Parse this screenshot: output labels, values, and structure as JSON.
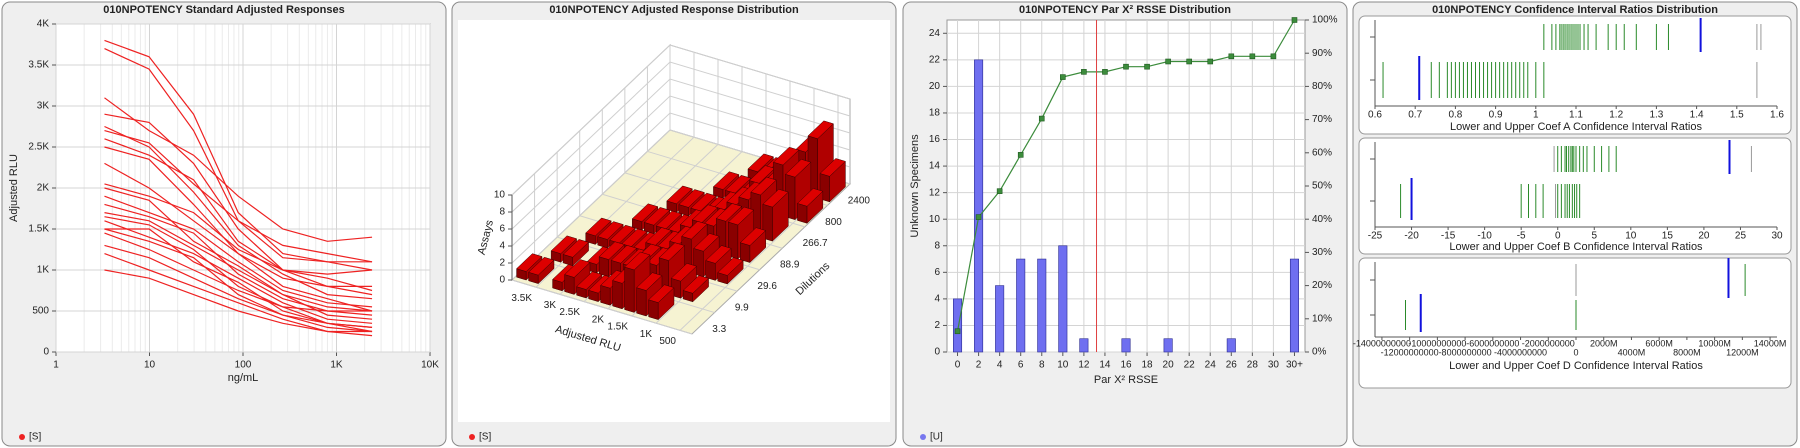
{
  "chart_data": [
    {
      "type": "line",
      "title": "010NPOTENCY Standard Adjusted Responses",
      "xlabel": "ng/mL",
      "ylabel": "Adjusted RLU",
      "x": [
        3.3,
        9.9,
        29.6,
        88.9,
        266.7,
        800,
        2400
      ],
      "log_x": true,
      "xlim": [
        1,
        10000
      ],
      "xticks": [
        1,
        10,
        100,
        {
          "value": 1000,
          "label": "1K"
        },
        {
          "value": 10000,
          "label": "10K"
        }
      ],
      "ylim": [
        0,
        4000
      ],
      "yticks": [
        0,
        500,
        {
          "value": 1000,
          "label": "1K"
        },
        {
          "value": 1500,
          "label": "1.5K"
        },
        {
          "value": 2000,
          "label": "2K"
        },
        {
          "value": 2500,
          "label": "2.5K"
        },
        {
          "value": 3000,
          "label": "3K"
        },
        {
          "value": 3500,
          "label": "3.5K"
        },
        {
          "value": 4000,
          "label": "4K"
        }
      ],
      "grid": true,
      "color": "#ee2222",
      "legend": {
        "label": "[S]",
        "color": "#ee2222"
      },
      "series": [
        {
          "values": [
            3800,
            3600,
            2900,
            1700,
            1200,
            1100,
            1000
          ]
        },
        {
          "values": [
            3700,
            3450,
            2700,
            1600,
            1150,
            1100,
            1100
          ]
        },
        {
          "values": [
            3100,
            2700,
            2400,
            1900,
            1500,
            1350,
            1400
          ]
        },
        {
          "values": [
            2900,
            2800,
            2300,
            1500,
            1000,
            800,
            800
          ]
        },
        {
          "values": [
            2750,
            2500,
            1950,
            1300,
            950,
            700,
            650
          ]
        },
        {
          "values": [
            2700,
            2550,
            2050,
            1600,
            1300,
            1200,
            1100
          ]
        },
        {
          "values": [
            2600,
            2400,
            2100,
            1350,
            1000,
            900,
            750
          ]
        },
        {
          "values": [
            2500,
            2350,
            1800,
            1200,
            800,
            650,
            500
          ]
        },
        {
          "values": [
            2300,
            2000,
            1600,
            1200,
            900,
            800,
            700
          ]
        },
        {
          "values": [
            2050,
            1900,
            1700,
            1250,
            1000,
            950,
            1000
          ]
        },
        {
          "values": [
            2000,
            1850,
            1350,
            1050,
            700,
            550,
            500
          ]
        },
        {
          "values": [
            1900,
            1700,
            1500,
            1100,
            750,
            600,
            550
          ]
        },
        {
          "values": [
            1800,
            1650,
            1450,
            950,
            650,
            500,
            450
          ]
        },
        {
          "values": [
            1700,
            1600,
            1300,
            1000,
            700,
            450,
            400
          ]
        },
        {
          "values": [
            1650,
            1550,
            1250,
            800,
            550,
            350,
            300
          ]
        },
        {
          "values": [
            1600,
            1400,
            1200,
            900,
            600,
            400,
            350
          ]
        },
        {
          "values": [
            1500,
            1500,
            1100,
            850,
            500,
            350,
            250
          ]
        },
        {
          "values": [
            1500,
            1350,
            1150,
            700,
            450,
            300,
            250
          ]
        },
        {
          "values": [
            1450,
            1250,
            1000,
            750,
            550,
            500,
            500
          ]
        },
        {
          "values": [
            1300,
            1150,
            900,
            650,
            450,
            350,
            300
          ]
        },
        {
          "values": [
            1200,
            1000,
            800,
            600,
            400,
            250,
            250
          ]
        },
        {
          "values": [
            1000,
            900,
            700,
            500,
            350,
            250,
            200
          ]
        }
      ]
    },
    {
      "type": "bar3d",
      "title": "010NPOTENCY Adjusted Response Distribution",
      "xlabel": "Adjusted RLU",
      "ylabel": "Dilutions",
      "zlabel": "Assays",
      "xbins": [
        250,
        500,
        750,
        1000,
        1250,
        1500,
        1750,
        2000,
        2250,
        2500,
        2750,
        3000,
        3250,
        3500,
        3750,
        4000
      ],
      "xlim": [
        4000,
        250
      ],
      "xticks": [
        {
          "value": 3500,
          "label": "3.5K"
        },
        {
          "value": 3000,
          "label": "3K"
        },
        {
          "value": 2500,
          "label": "2.5K"
        },
        {
          "value": 2000,
          "label": "2K"
        },
        {
          "value": 1500,
          "label": "1.5K"
        },
        {
          "value": 1000,
          "label": "1K"
        },
        500
      ],
      "categories": [
        "3.3",
        "9.9",
        "29.6",
        "88.9",
        "266.7",
        "800",
        "2400"
      ],
      "zlim": [
        0,
        10
      ],
      "zticks": [
        0,
        2,
        4,
        6,
        8,
        10
      ],
      "color": "#dd0000",
      "legend": {
        "label": "[S]",
        "color": "#ee2222"
      },
      "values": [
        [
          0,
          0,
          0,
          2,
          3,
          5,
          3,
          2,
          1,
          1,
          2,
          1,
          0,
          1,
          1
        ],
        [
          0,
          0,
          1,
          2,
          4,
          3,
          3,
          2,
          2,
          2,
          1,
          0,
          1,
          1,
          0
        ],
        [
          0,
          1,
          2,
          3,
          4,
          3,
          2,
          2,
          1,
          1,
          1,
          1,
          1,
          0,
          0
        ],
        [
          0,
          2,
          4,
          4,
          3,
          3,
          2,
          1,
          1,
          1,
          1,
          0,
          0,
          0,
          0
        ],
        [
          0,
          4,
          5,
          4,
          3,
          2,
          1,
          1,
          1,
          1,
          0,
          0,
          0,
          0,
          0
        ],
        [
          2,
          5,
          6,
          3,
          3,
          1,
          1,
          1,
          0,
          0,
          0,
          0,
          0,
          0,
          0
        ],
        [
          3,
          7,
          5,
          3,
          2,
          1,
          1,
          0,
          0,
          0,
          0,
          0,
          0,
          0,
          0
        ]
      ]
    },
    {
      "type": "pareto",
      "title": "010NPOTENCY Par X² RSSE Distribution",
      "xlabel": "Par X² RSSE",
      "ylabel": "Unknown Specimens",
      "x": [
        0,
        2,
        4,
        6,
        8,
        10,
        12,
        14,
        16,
        18,
        20,
        22,
        24,
        26,
        28,
        30,
        32
      ],
      "xlim": [
        -1,
        33
      ],
      "xticks": [
        0,
        2,
        4,
        6,
        8,
        10,
        12,
        14,
        16,
        18,
        20,
        22,
        24,
        26,
        28,
        30,
        {
          "value": 32,
          "label": "30+"
        }
      ],
      "ylim": [
        0,
        25
      ],
      "yticks": [
        0,
        2,
        4,
        6,
        8,
        10,
        12,
        14,
        16,
        18,
        20,
        22,
        24
      ],
      "y2lim": [
        0,
        100
      ],
      "y2ticks": [
        {
          "value": 0,
          "label": "0%"
        },
        {
          "value": 10,
          "label": "10%"
        },
        {
          "value": 20,
          "label": "20%"
        },
        {
          "value": 30,
          "label": "30%"
        },
        {
          "value": 40,
          "label": "40%"
        },
        {
          "value": 50,
          "label": "50%"
        },
        {
          "value": 60,
          "label": "60%"
        },
        {
          "value": 70,
          "label": "70%"
        },
        {
          "value": 80,
          "label": "80%"
        },
        {
          "value": 90,
          "label": "90%"
        },
        {
          "value": 100,
          "label": "100%"
        }
      ],
      "grid": true,
      "legend": {
        "label": "[U]",
        "color": "#7777ee"
      },
      "reference_line": {
        "x": 13.2,
        "color": "#e04040"
      },
      "series": [
        {
          "type": "bar",
          "color": "#6f6ff0",
          "values": [
            4,
            22,
            5,
            7,
            7,
            8,
            1,
            0,
            1,
            0,
            1,
            0,
            0,
            1,
            0,
            0,
            7
          ]
        },
        {
          "type": "line",
          "axis": "y2",
          "color": "#3c8c3c",
          "values": [
            6.25,
            40.63,
            48.44,
            59.38,
            70.31,
            82.81,
            84.38,
            84.38,
            85.94,
            85.94,
            87.5,
            87.5,
            87.5,
            89.06,
            89.06,
            89.06,
            100
          ]
        }
      ]
    },
    {
      "type": "strip",
      "title": "010NPOTENCY Confidence Interval Ratios Distribution",
      "plots": [
        {
          "xlabel": "Lower and Upper Coef A Confidence Interval Ratios",
          "xlim": [
            0.6,
            1.6
          ],
          "xticks": [
            0.6,
            0.7,
            0.8,
            0.9,
            1,
            1.1,
            1.2,
            1.3,
            1.4,
            1.5,
            1.6
          ],
          "rows": [
            {
              "groups": [
                {
                  "color": "#2a8a2a",
                  "stroke_width": 1,
                  "values": [
                    1.02,
                    1.04,
                    1.05,
                    1.06,
                    1.065,
                    1.07,
                    1.075,
                    1.08,
                    1.085,
                    1.09,
                    1.095,
                    1.1,
                    1.105,
                    1.11,
                    1.12,
                    1.13,
                    1.15,
                    1.18,
                    1.2,
                    1.22,
                    1.25,
                    1.3,
                    1.33,
                    1.06,
                    1.07,
                    1.08,
                    1.09,
                    1.1
                  ]
                },
                {
                  "color": "#999999",
                  "stroke_width": 1,
                  "values": [
                    1.55,
                    1.56
                  ]
                },
                {
                  "color": "#1111dd",
                  "stroke_width": 2,
                  "values": [
                    1.41
                  ]
                }
              ]
            },
            {
              "groups": [
                {
                  "color": "#2a8a2a",
                  "stroke_width": 1,
                  "values": [
                    0.62,
                    0.74,
                    0.76,
                    0.78,
                    0.79,
                    0.8,
                    0.81,
                    0.82,
                    0.83,
                    0.84,
                    0.85,
                    0.86,
                    0.87,
                    0.88,
                    0.89,
                    0.9,
                    0.91,
                    0.92,
                    0.93,
                    0.94,
                    0.95,
                    0.96,
                    0.97,
                    0.98,
                    1,
                    1.02
                  ]
                },
                {
                  "color": "#999999",
                  "stroke_width": 1,
                  "values": [
                    1.55
                  ]
                },
                {
                  "color": "#1111dd",
                  "stroke_width": 2,
                  "values": [
                    0.71
                  ]
                }
              ]
            }
          ]
        },
        {
          "xlabel": "Lower and Upper Coef B Confidence Interval Ratios",
          "xlim": [
            -25,
            30
          ],
          "xticks": [
            -25,
            -20,
            -15,
            -10,
            -5,
            0,
            5,
            10,
            15,
            20,
            25,
            30
          ],
          "rows": [
            {
              "groups": [
                {
                  "color": "#2a8a2a",
                  "stroke_width": 1,
                  "values": [
                    0,
                    0.5,
                    1,
                    1.2,
                    1.5,
                    1.8,
                    2,
                    2.2,
                    2.5,
                    3,
                    3.5,
                    4,
                    5,
                    6,
                    7,
                    8
                  ]
                },
                {
                  "color": "#999999",
                  "stroke_width": 1,
                  "values": [
                    -0.5,
                    26.5
                  ]
                },
                {
                  "color": "#1111dd",
                  "stroke_width": 2,
                  "values": [
                    23.5
                  ]
                }
              ]
            },
            {
              "groups": [
                {
                  "color": "#2a8a2a",
                  "stroke_width": 1,
                  "values": [
                    -21.5,
                    -5,
                    -4,
                    -3,
                    -2,
                    0,
                    0.5,
                    1,
                    1.3,
                    1.6,
                    2,
                    2.3,
                    2.6,
                    3
                  ]
                },
                {
                  "color": "#999999",
                  "stroke_width": 1,
                  "values": [
                    -0.3
                  ]
                },
                {
                  "color": "#1111dd",
                  "stroke_width": 2,
                  "values": [
                    -20
                  ]
                }
              ]
            }
          ]
        },
        {
          "xlabel": "Lower and Upper Coef D Confidence Interval Ratios",
          "xlim": [
            -14500000000,
            14500000000
          ],
          "stagger_labels": true,
          "xticks": [
            -14000000000,
            -12000000000,
            -10000000000,
            -8000000000,
            -6000000000,
            -4000000000,
            -2000000000,
            0,
            {
              "value": 2000000000,
              "label": "2000M"
            },
            {
              "value": 4000000000,
              "label": "4000M"
            },
            {
              "value": 6000000000,
              "label": "6000M"
            },
            {
              "value": 8000000000,
              "label": "8000M"
            },
            {
              "value": 10000000000,
              "label": "10000M"
            },
            {
              "value": 12000000000,
              "label": "12000M"
            },
            {
              "value": 14000000000,
              "label": "14000M"
            }
          ],
          "rows": [
            {
              "groups": [
                {
                  "color": "#2a8a2a",
                  "stroke_width": 1,
                  "values": [
                    12200000000
                  ]
                },
                {
                  "color": "#999999",
                  "stroke_width": 1,
                  "values": [
                    0
                  ]
                },
                {
                  "color": "#1111dd",
                  "stroke_width": 2,
                  "values": [
                    11000000000
                  ]
                }
              ]
            },
            {
              "groups": [
                {
                  "color": "#2a8a2a",
                  "stroke_width": 1,
                  "values": [
                    -12300000000,
                    0
                  ]
                },
                {
                  "color": "#1111dd",
                  "stroke_width": 2,
                  "values": [
                    -11200000000
                  ]
                }
              ]
            }
          ]
        }
      ]
    }
  ]
}
